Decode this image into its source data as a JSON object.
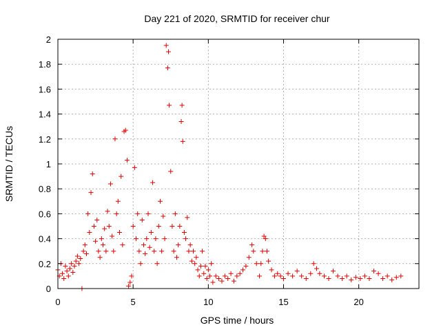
{
  "chart_data": {
    "type": "scatter",
    "title": "Day 221 of 2020, SRMTID for receiver chur",
    "xlabel": "GPS time / hours",
    "ylabel": "SRMTID / TECUs",
    "xlim": [
      0,
      24
    ],
    "ylim": [
      0,
      2
    ],
    "x_ticks": [
      0,
      5,
      10,
      15,
      20
    ],
    "x_tick_labels": [
      "0",
      "5",
      "10",
      "15",
      "20"
    ],
    "y_ticks": [
      0,
      0.2,
      0.4,
      0.6,
      0.8,
      1,
      1.2,
      1.4,
      1.6,
      1.8,
      2
    ],
    "y_tick_labels": [
      "0",
      "0.2",
      "0.4",
      "0.6",
      "0.8",
      "1",
      "1.2",
      "1.4",
      "1.6",
      "1.8",
      "2"
    ],
    "grid": true,
    "marker": "+",
    "marker_color": "#e00000",
    "series": [
      {
        "name": "SRMTID",
        "points": [
          [
            0.0,
            0.15
          ],
          [
            0.1,
            0.1
          ],
          [
            0.2,
            0.2
          ],
          [
            0.3,
            0.12
          ],
          [
            0.4,
            0.08
          ],
          [
            0.5,
            0.18
          ],
          [
            0.6,
            0.14
          ],
          [
            0.7,
            0.1
          ],
          [
            0.8,
            0.16
          ],
          [
            0.9,
            0.2
          ],
          [
            1.0,
            0.13
          ],
          [
            1.1,
            0.18
          ],
          [
            1.2,
            0.22
          ],
          [
            1.3,
            0.26
          ],
          [
            1.4,
            0.2
          ],
          [
            1.5,
            0.24
          ],
          [
            1.6,
            0.0
          ],
          [
            1.7,
            0.3
          ],
          [
            1.8,
            0.35
          ],
          [
            1.9,
            0.28
          ],
          [
            2.0,
            0.6
          ],
          [
            2.1,
            0.45
          ],
          [
            2.2,
            0.77
          ],
          [
            2.3,
            0.92
          ],
          [
            2.4,
            0.5
          ],
          [
            2.5,
            0.38
          ],
          [
            2.6,
            0.55
          ],
          [
            2.7,
            0.3
          ],
          [
            2.8,
            0.25
          ],
          [
            2.9,
            0.4
          ],
          [
            3.0,
            0.35
          ],
          [
            3.1,
            0.48
          ],
          [
            3.2,
            0.3
          ],
          [
            3.3,
            0.62
          ],
          [
            3.4,
            0.5
          ],
          [
            3.5,
            0.84
          ],
          [
            3.6,
            0.42
          ],
          [
            3.7,
            0.3
          ],
          [
            3.8,
            1.2
          ],
          [
            3.9,
            0.6
          ],
          [
            4.0,
            0.7
          ],
          [
            4.1,
            0.45
          ],
          [
            4.2,
            0.9
          ],
          [
            4.3,
            0.35
          ],
          [
            4.4,
            1.26
          ],
          [
            4.5,
            1.27
          ],
          [
            4.6,
            1.03
          ],
          [
            4.7,
            0.02
          ],
          [
            4.8,
            0.05
          ],
          [
            4.9,
            0.1
          ],
          [
            5.0,
            0.5
          ],
          [
            5.1,
            0.97
          ],
          [
            5.2,
            0.4
          ],
          [
            5.3,
            0.6
          ],
          [
            5.4,
            0.3
          ],
          [
            5.5,
            0.2
          ],
          [
            5.6,
            0.55
          ],
          [
            5.7,
            0.35
          ],
          [
            5.8,
            0.28
          ],
          [
            5.9,
            0.4
          ],
          [
            6.0,
            0.6
          ],
          [
            6.1,
            0.33
          ],
          [
            6.2,
            0.45
          ],
          [
            6.3,
            0.85
          ],
          [
            6.4,
            0.3
          ],
          [
            6.5,
            0.4
          ],
          [
            6.6,
            0.2
          ],
          [
            6.7,
            0.5
          ],
          [
            6.8,
            0.7
          ],
          [
            6.9,
            0.3
          ],
          [
            7.0,
            0.58
          ],
          [
            7.1,
            0.4
          ],
          [
            7.2,
            1.95
          ],
          [
            7.3,
            1.77
          ],
          [
            7.35,
            1.9
          ],
          [
            7.4,
            1.47
          ],
          [
            7.5,
            0.94
          ],
          [
            7.6,
            0.5
          ],
          [
            7.7,
            0.3
          ],
          [
            7.8,
            0.6
          ],
          [
            7.9,
            0.25
          ],
          [
            8.0,
            0.35
          ],
          [
            8.1,
            0.5
          ],
          [
            8.2,
            1.34
          ],
          [
            8.25,
            1.47
          ],
          [
            8.3,
            1.18
          ],
          [
            8.4,
            0.45
          ],
          [
            8.5,
            0.4
          ],
          [
            8.6,
            0.57
          ],
          [
            8.7,
            0.3
          ],
          [
            8.8,
            0.35
          ],
          [
            8.9,
            0.22
          ],
          [
            9.0,
            0.3
          ],
          [
            9.1,
            0.2
          ],
          [
            9.2,
            0.25
          ],
          [
            9.3,
            0.15
          ],
          [
            9.4,
            0.1
          ],
          [
            9.5,
            0.18
          ],
          [
            9.6,
            0.3
          ],
          [
            9.7,
            0.12
          ],
          [
            9.8,
            0.18
          ],
          [
            9.9,
            0.08
          ],
          [
            10.0,
            0.15
          ],
          [
            10.1,
            0.1
          ],
          [
            10.2,
            0.2
          ],
          [
            10.3,
            0.05
          ],
          [
            10.5,
            0.1
          ],
          [
            10.7,
            0.08
          ],
          [
            10.9,
            0.06
          ],
          [
            11.1,
            0.1
          ],
          [
            11.3,
            0.08
          ],
          [
            11.5,
            0.12
          ],
          [
            11.7,
            0.06
          ],
          [
            11.9,
            0.1
          ],
          [
            12.1,
            0.12
          ],
          [
            12.3,
            0.15
          ],
          [
            12.5,
            0.18
          ],
          [
            12.7,
            0.25
          ],
          [
            12.9,
            0.35
          ],
          [
            13.0,
            0.3
          ],
          [
            13.2,
            0.2
          ],
          [
            13.4,
            0.1
          ],
          [
            13.5,
            0.2
          ],
          [
            13.6,
            0.3
          ],
          [
            13.7,
            0.42
          ],
          [
            13.8,
            0.4
          ],
          [
            13.9,
            0.3
          ],
          [
            14.0,
            0.22
          ],
          [
            14.2,
            0.15
          ],
          [
            14.4,
            0.1
          ],
          [
            14.6,
            0.12
          ],
          [
            14.8,
            0.1
          ],
          [
            15.0,
            0.08
          ],
          [
            15.3,
            0.12
          ],
          [
            15.6,
            0.1
          ],
          [
            15.9,
            0.14
          ],
          [
            16.2,
            0.1
          ],
          [
            16.5,
            0.08
          ],
          [
            16.8,
            0.12
          ],
          [
            17.0,
            0.2
          ],
          [
            17.2,
            0.16
          ],
          [
            17.4,
            0.12
          ],
          [
            17.7,
            0.1
          ],
          [
            18.0,
            0.08
          ],
          [
            18.3,
            0.14
          ],
          [
            18.6,
            0.1
          ],
          [
            18.9,
            0.08
          ],
          [
            19.2,
            0.1
          ],
          [
            19.5,
            0.07
          ],
          [
            19.8,
            0.09
          ],
          [
            20.1,
            0.08
          ],
          [
            20.4,
            0.1
          ],
          [
            20.7,
            0.08
          ],
          [
            21.0,
            0.14
          ],
          [
            21.3,
            0.12
          ],
          [
            21.6,
            0.08
          ],
          [
            21.9,
            0.1
          ],
          [
            22.2,
            0.07
          ],
          [
            22.5,
            0.09
          ],
          [
            22.8,
            0.1
          ]
        ]
      }
    ]
  }
}
